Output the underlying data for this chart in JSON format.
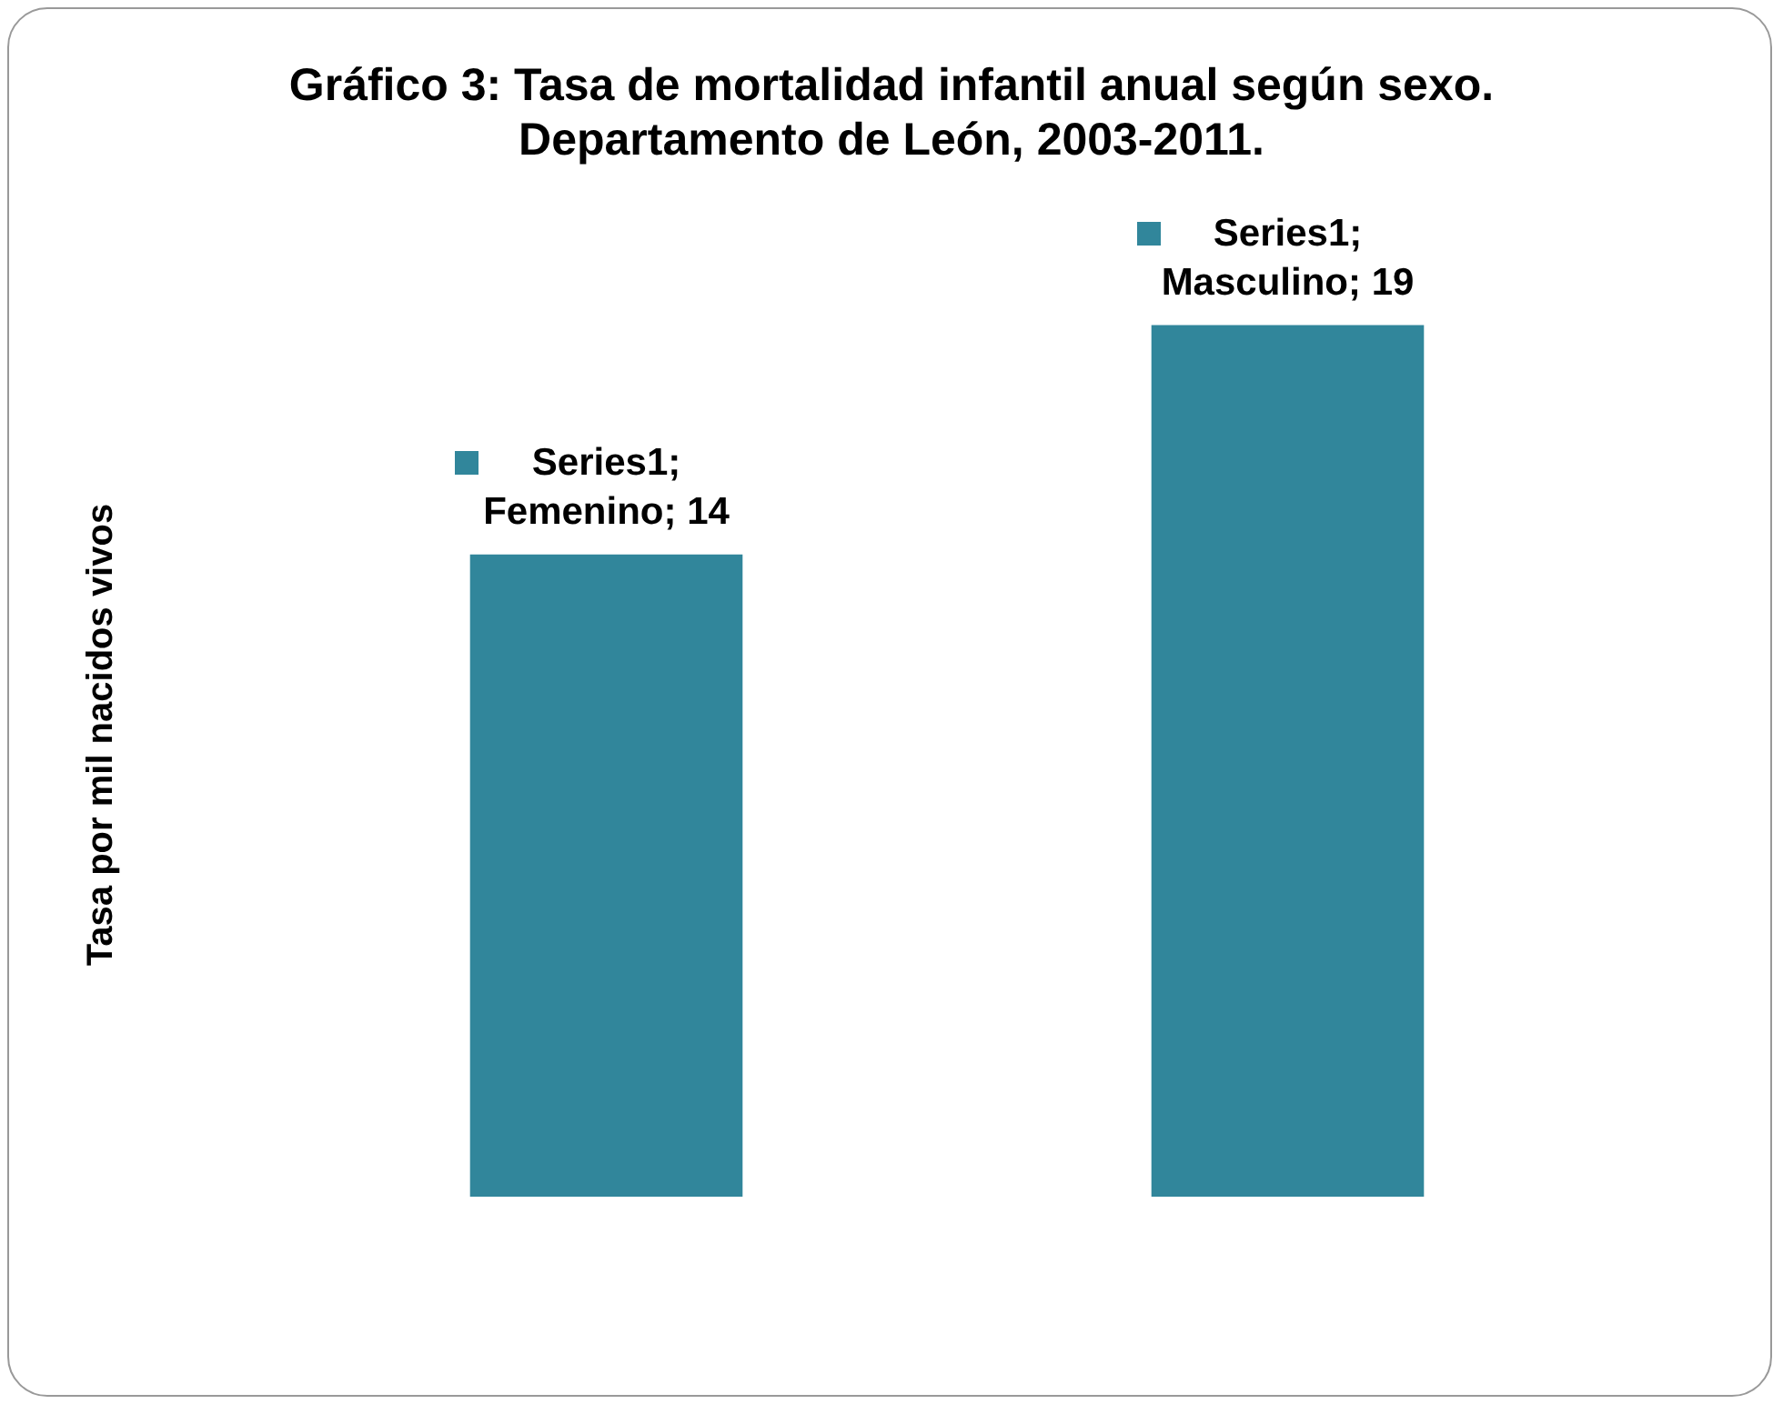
{
  "chart_data": {
    "type": "bar",
    "title": "Gráfico 3: Tasa de mortalidad infantil anual según sexo. Departamento de León, 2003-2011.",
    "ylabel": "Tasa por mil nacidos vivos",
    "categories": [
      null,
      null
    ],
    "series": [
      {
        "color": "#31869b",
        "values": [
          14,
          19
        ],
        "value_labels": [
          "Series1; Femenino; 14",
          "Series1; Masculino; 19"
        ]
      }
    ],
    "grid": false,
    "legend": false
  }
}
